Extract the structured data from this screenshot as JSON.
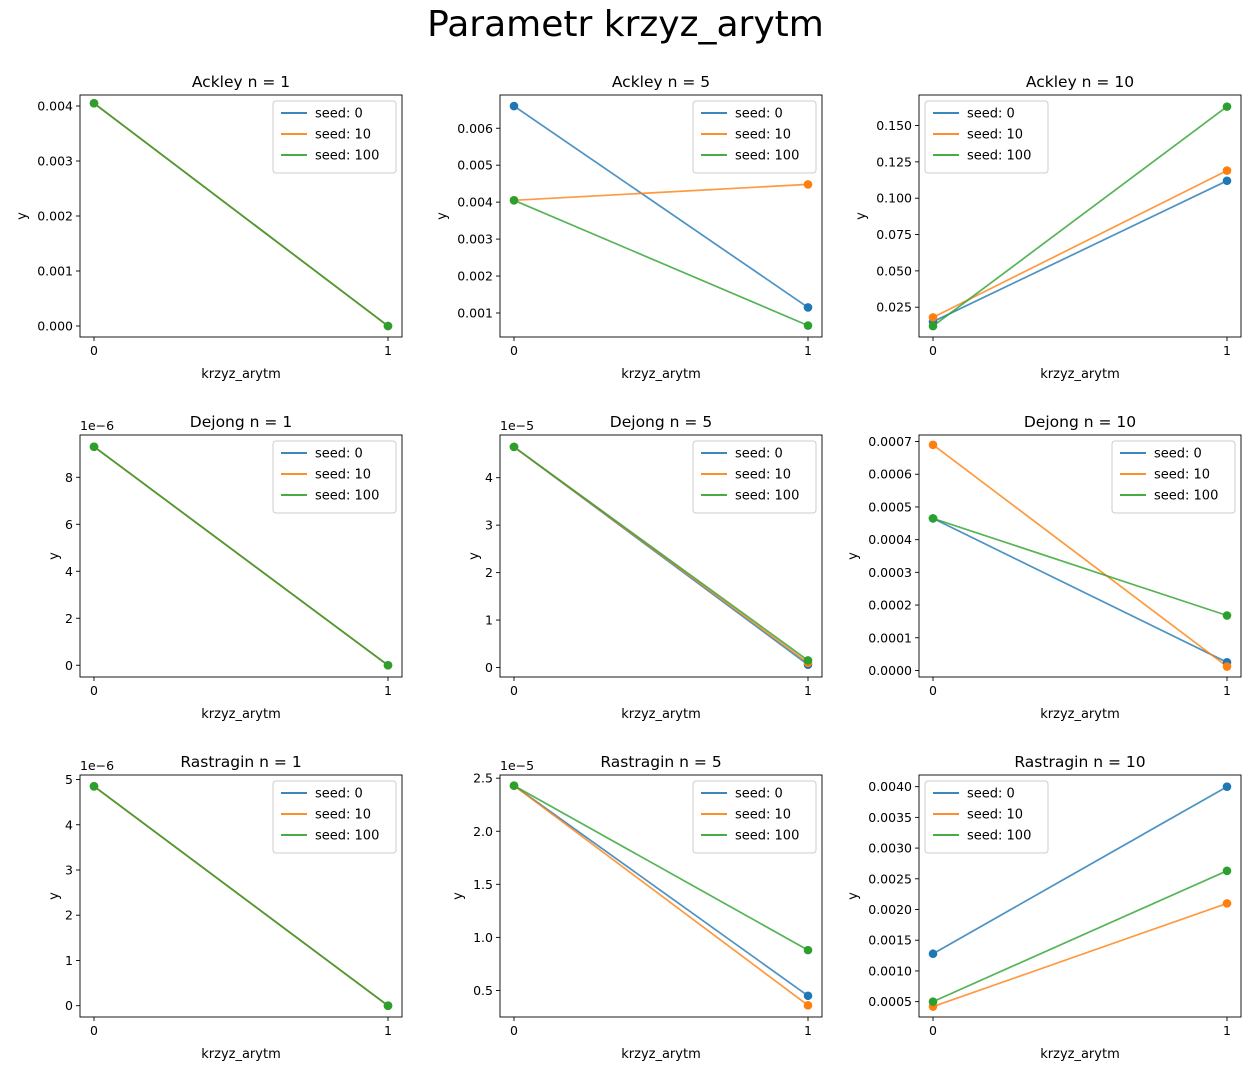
{
  "figure": {
    "title": "Parametr krzyz_arytm",
    "colors": {
      "seed_0": "#1f77b4",
      "seed_10": "#ff7f0e",
      "seed_100": "#2ca02c"
    }
  },
  "chart_data": [
    {
      "type": "line",
      "title": "Ackley n = 1",
      "xlabel": "krzyz_arytm",
      "ylabel": "y",
      "x": [
        0,
        1
      ],
      "xticks": [
        "0",
        "1"
      ],
      "ylim": [
        -0.0002,
        0.0042
      ],
      "yticks": [
        0,
        0.001,
        0.002,
        0.003,
        0.004
      ],
      "ytick_labels": [
        "0.000",
        "0.001",
        "0.002",
        "0.003",
        "0.004"
      ],
      "exponent": "",
      "legend": "upper right",
      "series": [
        {
          "name": "seed: 0",
          "color": "#1f77b4",
          "values": [
            0.00405,
            0.0
          ]
        },
        {
          "name": "seed: 10",
          "color": "#ff7f0e",
          "values": [
            0.00405,
            0.0
          ]
        },
        {
          "name": "seed: 100",
          "color": "#2ca02c",
          "values": [
            0.00405,
            0.0
          ]
        }
      ]
    },
    {
      "type": "line",
      "title": "Ackley n = 5",
      "xlabel": "krzyz_arytm",
      "ylabel": "y",
      "x": [
        0,
        1
      ],
      "xticks": [
        "0",
        "1"
      ],
      "ylim": [
        0.00035,
        0.0069
      ],
      "yticks": [
        0.001,
        0.002,
        0.003,
        0.004,
        0.005,
        0.006
      ],
      "ytick_labels": [
        "0.001",
        "0.002",
        "0.003",
        "0.004",
        "0.005",
        "0.006"
      ],
      "exponent": "",
      "legend": "upper right",
      "series": [
        {
          "name": "seed: 0",
          "color": "#1f77b4",
          "values": [
            0.0066,
            0.00115
          ]
        },
        {
          "name": "seed: 10",
          "color": "#ff7f0e",
          "values": [
            0.00405,
            0.00448
          ]
        },
        {
          "name": "seed: 100",
          "color": "#2ca02c",
          "values": [
            0.00405,
            0.00066
          ]
        }
      ]
    },
    {
      "type": "line",
      "title": "Ackley n = 10",
      "xlabel": "krzyz_arytm",
      "ylabel": "y",
      "x": [
        0,
        1
      ],
      "xticks": [
        "0",
        "1"
      ],
      "ylim": [
        0.0045,
        0.171
      ],
      "yticks": [
        0.025,
        0.05,
        0.075,
        0.1,
        0.125,
        0.15
      ],
      "ytick_labels": [
        "0.025",
        "0.050",
        "0.075",
        "0.100",
        "0.125",
        "0.150"
      ],
      "exponent": "",
      "legend": "upper left",
      "series": [
        {
          "name": "seed: 0",
          "color": "#1f77b4",
          "values": [
            0.015,
            0.112
          ]
        },
        {
          "name": "seed: 10",
          "color": "#ff7f0e",
          "values": [
            0.018,
            0.119
          ]
        },
        {
          "name": "seed: 100",
          "color": "#2ca02c",
          "values": [
            0.012,
            0.163
          ]
        }
      ]
    },
    {
      "type": "line",
      "title": "Dejong n = 1",
      "xlabel": "krzyz_arytm",
      "ylabel": "y",
      "x": [
        0,
        1
      ],
      "xticks": [
        "0",
        "1"
      ],
      "ylim": [
        -0.5,
        9.8
      ],
      "yticks": [
        0,
        2,
        4,
        6,
        8
      ],
      "ytick_labels": [
        "0",
        "2",
        "4",
        "6",
        "8"
      ],
      "exponent": "1e−6",
      "legend": "upper right",
      "series": [
        {
          "name": "seed: 0",
          "color": "#1f77b4",
          "values": [
            9.3,
            0.0
          ]
        },
        {
          "name": "seed: 10",
          "color": "#ff7f0e",
          "values": [
            9.3,
            0.0
          ]
        },
        {
          "name": "seed: 100",
          "color": "#2ca02c",
          "values": [
            9.3,
            0.0
          ]
        }
      ]
    },
    {
      "type": "line",
      "title": "Dejong n = 5",
      "xlabel": "krzyz_arytm",
      "ylabel": "y",
      "x": [
        0,
        1
      ],
      "xticks": [
        "0",
        "1"
      ],
      "ylim": [
        -0.2,
        4.9
      ],
      "yticks": [
        0,
        1,
        2,
        3,
        4
      ],
      "ytick_labels": [
        "0",
        "1",
        "2",
        "3",
        "4"
      ],
      "exponent": "1e−5",
      "legend": "upper right",
      "series": [
        {
          "name": "seed: 0",
          "color": "#1f77b4",
          "values": [
            4.65,
            0.06
          ]
        },
        {
          "name": "seed: 10",
          "color": "#ff7f0e",
          "values": [
            4.65,
            0.1
          ]
        },
        {
          "name": "seed: 100",
          "color": "#2ca02c",
          "values": [
            4.65,
            0.15
          ]
        }
      ]
    },
    {
      "type": "line",
      "title": "Dejong n = 10",
      "xlabel": "krzyz_arytm",
      "ylabel": "y",
      "x": [
        0,
        1
      ],
      "xticks": [
        "0",
        "1"
      ],
      "ylim": [
        -2e-05,
        0.00072
      ],
      "yticks": [
        0,
        0.0001,
        0.0002,
        0.0003,
        0.0004,
        0.0005,
        0.0006,
        0.0007
      ],
      "ytick_labels": [
        "0.0000",
        "0.0001",
        "0.0002",
        "0.0003",
        "0.0004",
        "0.0005",
        "0.0006",
        "0.0007"
      ],
      "exponent": "",
      "legend": "upper right",
      "series": [
        {
          "name": "seed: 0",
          "color": "#1f77b4",
          "values": [
            0.000465,
            2.5e-05
          ]
        },
        {
          "name": "seed: 10",
          "color": "#ff7f0e",
          "values": [
            0.00069,
            1.2e-05
          ]
        },
        {
          "name": "seed: 100",
          "color": "#2ca02c",
          "values": [
            0.000465,
            0.000168
          ]
        }
      ]
    },
    {
      "type": "line",
      "title": "Rastragin n = 1",
      "xlabel": "krzyz_arytm",
      "ylabel": "y",
      "x": [
        0,
        1
      ],
      "xticks": [
        "0",
        "1"
      ],
      "ylim": [
        -0.25,
        5.1
      ],
      "yticks": [
        0,
        1,
        2,
        3,
        4,
        5
      ],
      "ytick_labels": [
        "0",
        "1",
        "2",
        "3",
        "4",
        "5"
      ],
      "exponent": "1e−6",
      "legend": "upper right",
      "series": [
        {
          "name": "seed: 0",
          "color": "#1f77b4",
          "values": [
            4.85,
            0.0
          ]
        },
        {
          "name": "seed: 10",
          "color": "#ff7f0e",
          "values": [
            4.85,
            0.0
          ]
        },
        {
          "name": "seed: 100",
          "color": "#2ca02c",
          "values": [
            4.85,
            0.0
          ]
        }
      ]
    },
    {
      "type": "line",
      "title": "Rastragin n = 5",
      "xlabel": "krzyz_arytm",
      "ylabel": "y",
      "x": [
        0,
        1
      ],
      "xticks": [
        "0",
        "1"
      ],
      "ylim": [
        0.25,
        2.53
      ],
      "yticks": [
        0.5,
        1.0,
        1.5,
        2.0,
        2.5
      ],
      "ytick_labels": [
        "0.5",
        "1.0",
        "1.5",
        "2.0",
        "2.5"
      ],
      "exponent": "1e−5",
      "legend": "upper right",
      "series": [
        {
          "name": "seed: 0",
          "color": "#1f77b4",
          "values": [
            2.43,
            0.45
          ]
        },
        {
          "name": "seed: 10",
          "color": "#ff7f0e",
          "values": [
            2.43,
            0.36
          ]
        },
        {
          "name": "seed: 100",
          "color": "#2ca02c",
          "values": [
            2.43,
            0.88
          ]
        }
      ]
    },
    {
      "type": "line",
      "title": "Rastragin n = 10",
      "xlabel": "krzyz_arytm",
      "ylabel": "y",
      "x": [
        0,
        1
      ],
      "xticks": [
        "0",
        "1"
      ],
      "ylim": [
        0.00025,
        0.00419
      ],
      "yticks": [
        0.0005,
        0.001,
        0.0015,
        0.002,
        0.0025,
        0.003,
        0.0035,
        0.004
      ],
      "ytick_labels": [
        "0.0005",
        "0.0010",
        "0.0015",
        "0.0020",
        "0.0025",
        "0.0030",
        "0.0035",
        "0.0040"
      ],
      "exponent": "",
      "legend": "upper left",
      "series": [
        {
          "name": "seed: 0",
          "color": "#1f77b4",
          "values": [
            0.00128,
            0.004
          ]
        },
        {
          "name": "seed: 10",
          "color": "#ff7f0e",
          "values": [
            0.00042,
            0.0021
          ]
        },
        {
          "name": "seed: 100",
          "color": "#2ca02c",
          "values": [
            0.0005,
            0.00263
          ]
        }
      ]
    }
  ]
}
